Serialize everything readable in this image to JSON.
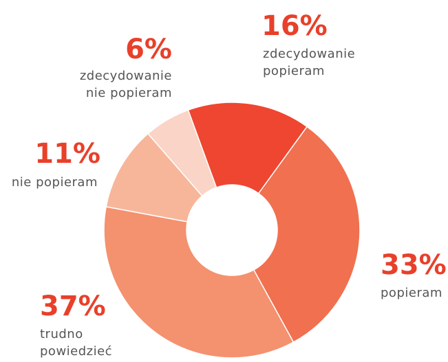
{
  "chart_data": {
    "type": "donut",
    "categories": [
      "zdecydowanie popieram",
      "popieram",
      "trudno powiedzieć",
      "nie popieram",
      "zdecydowanie nie popieram"
    ],
    "values": [
      16,
      33,
      37,
      11,
      6
    ],
    "value_labels": [
      "16%",
      "33%",
      "37%",
      "11%",
      "6%"
    ],
    "colors": [
      "#ee4631",
      "#f07050",
      "#f4916f",
      "#f7b69a",
      "#fad4c6"
    ]
  }
}
